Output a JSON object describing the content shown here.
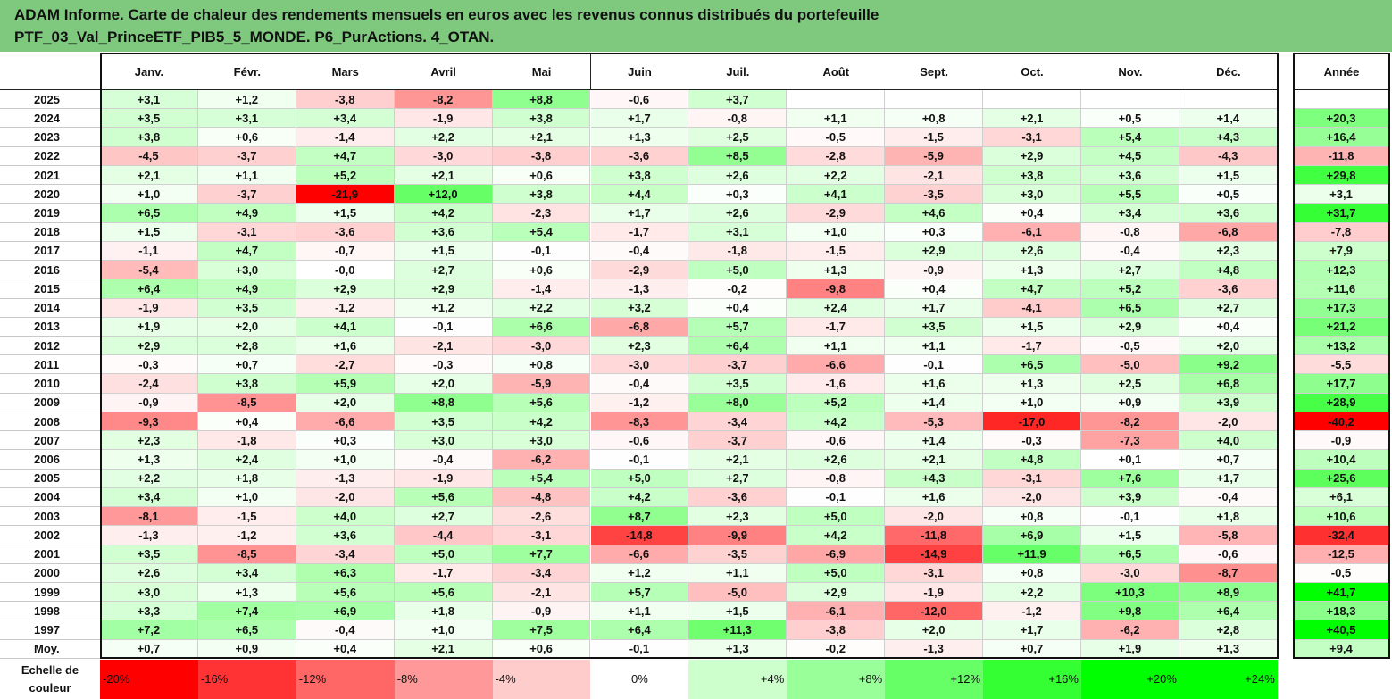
{
  "title": {
    "line1": "ADAM Informe. Carte de chaleur des rendements mensuels en euros avec les revenus connus distribués du portefeuille",
    "line2": "PTF_03_Val_PrinceETF_PIB5_5_MONDE. P6_PurActions. 4_OTAN."
  },
  "chart_data": {
    "type": "heatmap",
    "columns": [
      "Janv.",
      "Févr.",
      "Mars",
      "Avril",
      "Mai",
      "Juin",
      "Juil.",
      "Août",
      "Sept.",
      "Oct.",
      "Nov.",
      "Déc."
    ],
    "year_column": "Année",
    "rows": [
      {
        "label": "2025",
        "values": [
          "+3,1",
          "+1,2",
          "-3,8",
          "-8,2",
          "+8,8",
          "-0,6",
          "+3,7",
          "",
          "",
          "",
          "",
          ""
        ],
        "year": ""
      },
      {
        "label": "2024",
        "values": [
          "+3,5",
          "+3,1",
          "+3,4",
          "-1,9",
          "+3,8",
          "+1,7",
          "-0,8",
          "+1,1",
          "+0,8",
          "+2,1",
          "+0,5",
          "+1,4"
        ],
        "year": "+20,3"
      },
      {
        "label": "2023",
        "values": [
          "+3,8",
          "+0,6",
          "-1,4",
          "+2,2",
          "+2,1",
          "+1,3",
          "+2,5",
          "-0,5",
          "-1,5",
          "-3,1",
          "+5,4",
          "+4,3"
        ],
        "year": "+16,4"
      },
      {
        "label": "2022",
        "values": [
          "-4,5",
          "-3,7",
          "+4,7",
          "-3,0",
          "-3,8",
          "-3,6",
          "+8,5",
          "-2,8",
          "-5,9",
          "+2,9",
          "+4,5",
          "-4,3"
        ],
        "year": "-11,8"
      },
      {
        "label": "2021",
        "values": [
          "+2,1",
          "+1,1",
          "+5,2",
          "+2,1",
          "+0,6",
          "+3,8",
          "+2,6",
          "+2,2",
          "-2,1",
          "+3,8",
          "+3,6",
          "+1,5"
        ],
        "year": "+29,8"
      },
      {
        "label": "2020",
        "values": [
          "+1,0",
          "-3,7",
          "-21,9",
          "+12,0",
          "+3,8",
          "+4,4",
          "+0,3",
          "+4,1",
          "-3,5",
          "+3,0",
          "+5,5",
          "+0,5"
        ],
        "year": "+3,1"
      },
      {
        "label": "2019",
        "values": [
          "+6,5",
          "+4,9",
          "+1,5",
          "+4,2",
          "-2,3",
          "+1,7",
          "+2,6",
          "-2,9",
          "+4,6",
          "+0,4",
          "+3,4",
          "+3,6"
        ],
        "year": "+31,7"
      },
      {
        "label": "2018",
        "values": [
          "+1,5",
          "-3,1",
          "-3,6",
          "+3,6",
          "+5,4",
          "-1,7",
          "+3,1",
          "+1,0",
          "+0,3",
          "-6,1",
          "-0,8",
          "-6,8"
        ],
        "year": "-7,8"
      },
      {
        "label": "2017",
        "values": [
          "-1,1",
          "+4,7",
          "-0,7",
          "+1,5",
          "-0,1",
          "-0,4",
          "-1,8",
          "-1,5",
          "+2,9",
          "+2,6",
          "-0,4",
          "+2,3"
        ],
        "year": "+7,9"
      },
      {
        "label": "2016",
        "values": [
          "-5,4",
          "+3,0",
          "-0,0",
          "+2,7",
          "+0,6",
          "-2,9",
          "+5,0",
          "+1,3",
          "-0,9",
          "+1,3",
          "+2,7",
          "+4,8"
        ],
        "year": "+12,3"
      },
      {
        "label": "2015",
        "values": [
          "+6,4",
          "+4,9",
          "+2,9",
          "+2,9",
          "-1,4",
          "-1,3",
          "-0,2",
          "-9,8",
          "+0,4",
          "+4,7",
          "+5,2",
          "-3,6"
        ],
        "year": "+11,6"
      },
      {
        "label": "2014",
        "values": [
          "-1,9",
          "+3,5",
          "-1,2",
          "+1,2",
          "+2,2",
          "+3,2",
          "+0,4",
          "+2,4",
          "+1,7",
          "-4,1",
          "+6,5",
          "+2,7"
        ],
        "year": "+17,3"
      },
      {
        "label": "2013",
        "values": [
          "+1,9",
          "+2,0",
          "+4,1",
          "-0,1",
          "+6,6",
          "-6,8",
          "+5,7",
          "-1,7",
          "+3,5",
          "+1,5",
          "+2,9",
          "+0,4"
        ],
        "year": "+21,2"
      },
      {
        "label": "2012",
        "values": [
          "+2,9",
          "+2,8",
          "+1,6",
          "-2,1",
          "-3,0",
          "+2,3",
          "+6,4",
          "+1,1",
          "+1,1",
          "-1,7",
          "-0,5",
          "+2,0"
        ],
        "year": "+13,2"
      },
      {
        "label": "2011",
        "values": [
          "-0,3",
          "+0,7",
          "-2,7",
          "-0,3",
          "+0,8",
          "-3,0",
          "-3,7",
          "-6,6",
          "-0,1",
          "+6,5",
          "-5,0",
          "+9,2"
        ],
        "year": "-5,5"
      },
      {
        "label": "2010",
        "values": [
          "-2,4",
          "+3,8",
          "+5,9",
          "+2,0",
          "-5,9",
          "-0,4",
          "+3,5",
          "-1,6",
          "+1,6",
          "+1,3",
          "+2,5",
          "+6,8"
        ],
        "year": "+17,7"
      },
      {
        "label": "2009",
        "values": [
          "-0,9",
          "-8,5",
          "+2,0",
          "+8,8",
          "+5,6",
          "-1,2",
          "+8,0",
          "+5,2",
          "+1,4",
          "+1,0",
          "+0,9",
          "+3,9"
        ],
        "year": "+28,9"
      },
      {
        "label": "2008",
        "values": [
          "-9,3",
          "+0,4",
          "-6,6",
          "+3,5",
          "+4,2",
          "-8,3",
          "-3,4",
          "+4,2",
          "-5,3",
          "-17,0",
          "-8,2",
          "-2,0"
        ],
        "year": "-40,2"
      },
      {
        "label": "2007",
        "values": [
          "+2,3",
          "-1,8",
          "+0,3",
          "+3,0",
          "+3,0",
          "-0,6",
          "-3,7",
          "-0,6",
          "+1,4",
          "-0,3",
          "-7,3",
          "+4,0"
        ],
        "year": "-0,9"
      },
      {
        "label": "2006",
        "values": [
          "+1,3",
          "+2,4",
          "+1,0",
          "-0,4",
          "-6,2",
          "-0,1",
          "+2,1",
          "+2,6",
          "+2,1",
          "+4,8",
          "+0,1",
          "+0,7"
        ],
        "year": "+10,4"
      },
      {
        "label": "2005",
        "values": [
          "+2,2",
          "+1,8",
          "-1,3",
          "-1,9",
          "+5,4",
          "+5,0",
          "+2,7",
          "-0,8",
          "+4,3",
          "-3,1",
          "+7,6",
          "+1,7"
        ],
        "year": "+25,6"
      },
      {
        "label": "2004",
        "values": [
          "+3,4",
          "+1,0",
          "-2,0",
          "+5,6",
          "-4,8",
          "+4,2",
          "-3,6",
          "-0,1",
          "+1,6",
          "-2,0",
          "+3,9",
          "-0,4"
        ],
        "year": "+6,1"
      },
      {
        "label": "2003",
        "values": [
          "-8,1",
          "-1,5",
          "+4,0",
          "+2,7",
          "-2,6",
          "+8,7",
          "+2,3",
          "+5,0",
          "-2,0",
          "+0,8",
          "-0,1",
          "+1,8"
        ],
        "year": "+10,6"
      },
      {
        "label": "2002",
        "values": [
          "-1,3",
          "-1,2",
          "+3,6",
          "-4,4",
          "-3,1",
          "-14,8",
          "-9,9",
          "+4,2",
          "-11,8",
          "+6,9",
          "+1,5",
          "-5,8"
        ],
        "year": "-32,4"
      },
      {
        "label": "2001",
        "values": [
          "+3,5",
          "-8,5",
          "-3,4",
          "+5,0",
          "+7,7",
          "-6,6",
          "-3,5",
          "-6,9",
          "-14,9",
          "+11,9",
          "+6,5",
          "-0,6"
        ],
        "year": "-12,5"
      },
      {
        "label": "2000",
        "values": [
          "+2,6",
          "+3,4",
          "+6,3",
          "-1,7",
          "-3,4",
          "+1,2",
          "+1,1",
          "+5,0",
          "-3,1",
          "+0,8",
          "-3,0",
          "-8,7"
        ],
        "year": "-0,5"
      },
      {
        "label": "1999",
        "values": [
          "+3,0",
          "+1,3",
          "+5,6",
          "+5,6",
          "-2,1",
          "+5,7",
          "-5,0",
          "+2,9",
          "-1,9",
          "+2,2",
          "+10,3",
          "+8,9"
        ],
        "year": "+41,7"
      },
      {
        "label": "1998",
        "values": [
          "+3,3",
          "+7,4",
          "+6,9",
          "+1,8",
          "-0,9",
          "+1,1",
          "+1,5",
          "-6,1",
          "-12,0",
          "-1,2",
          "+9,8",
          "+6,4"
        ],
        "year": "+18,3"
      },
      {
        "label": "1997",
        "values": [
          "+7,2",
          "+6,5",
          "-0,4",
          "+1,0",
          "+7,5",
          "+6,4",
          "+11,3",
          "-3,8",
          "+2,0",
          "+1,7",
          "-6,2",
          "+2,8"
        ],
        "year": "+40,5"
      }
    ],
    "average_row": {
      "label": "Moy.",
      "values": [
        "+0,7",
        "+0,9",
        "+0,4",
        "+2,1",
        "+0,6",
        "-0,1",
        "+1,3",
        "-0,2",
        "-1,3",
        "+0,7",
        "+1,9",
        "+1,3"
      ],
      "year": "+9,4"
    },
    "scale": {
      "label_line1": "Echelle de",
      "label_line2": "couleur",
      "items": [
        "-20%",
        "-16%",
        "-12%",
        "-8%",
        "-4%",
        "0%",
        "+4%",
        "+8%",
        "+12%",
        "+16%",
        "+20%",
        "+24%"
      ],
      "levels": [
        -20,
        -16,
        -12,
        -8,
        -4,
        0,
        4,
        8,
        12,
        16,
        20,
        24
      ]
    },
    "colors": {
      "negative_max": "#ff0000",
      "neutral": "#ffffff",
      "positive_max": "#00ff00",
      "title_bg": "#7ec97e"
    }
  }
}
